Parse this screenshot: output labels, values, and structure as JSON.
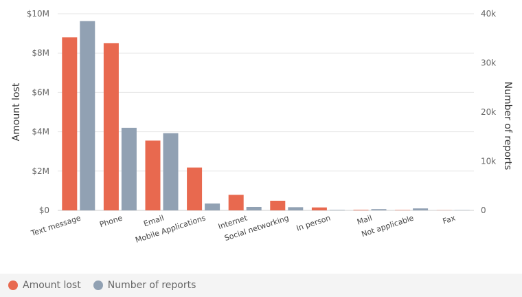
{
  "chart_data": {
    "type": "bar",
    "categories": [
      "Text message",
      "Phone",
      "Email",
      "Mobile Applications",
      "Internet",
      "Social networking",
      "In person",
      "Mail",
      "Not applicable",
      "Fax"
    ],
    "series": [
      {
        "name": "Amount lost",
        "axis": "left",
        "color": "#e8694f",
        "values": [
          8800000,
          8500000,
          3550000,
          2180000,
          790000,
          490000,
          150000,
          30000,
          20000,
          10000
        ]
      },
      {
        "name": "Number of reports",
        "axis": "right",
        "color": "#91a1b3",
        "values": [
          38500,
          16800,
          15700,
          1400,
          700,
          650,
          100,
          250,
          400,
          60
        ]
      }
    ],
    "ylabel": "Amount lost",
    "y2label": "Number of reports",
    "ylim": [
      0,
      10000000
    ],
    "y2lim": [
      0,
      40000
    ],
    "yticks": [
      {
        "value": 0,
        "label": "$0"
      },
      {
        "value": 2000000,
        "label": "$2M"
      },
      {
        "value": 4000000,
        "label": "$4M"
      },
      {
        "value": 6000000,
        "label": "$6M"
      },
      {
        "value": 8000000,
        "label": "$8M"
      },
      {
        "value": 10000000,
        "label": "$10M"
      }
    ],
    "y2ticks": [
      {
        "value": 0,
        "label": "0"
      },
      {
        "value": 10000,
        "label": "10k"
      },
      {
        "value": 20000,
        "label": "20k"
      },
      {
        "value": 30000,
        "label": "30k"
      },
      {
        "value": 40000,
        "label": "40k"
      }
    ],
    "grid": true,
    "legend_position": "bottom-left"
  },
  "legend": {
    "items": [
      {
        "label": "Amount lost",
        "color": "#e8694f"
      },
      {
        "label": "Number of reports",
        "color": "#91a1b3"
      }
    ]
  }
}
